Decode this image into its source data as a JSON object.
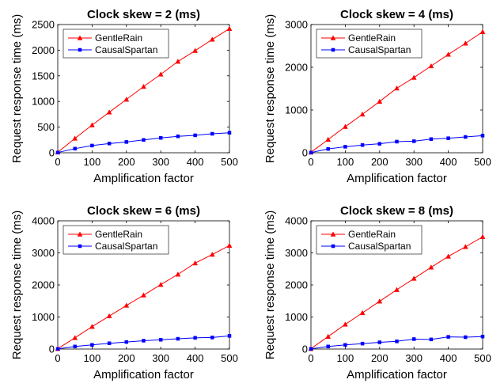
{
  "chart_data": [
    {
      "type": "line",
      "title": "Clock skew = 2 (ms)",
      "xlabel": "Amplification factor",
      "ylabel": "Request response time (ms)",
      "xlim": [
        0,
        500
      ],
      "ylim": [
        0,
        2500
      ],
      "xticks": [
        0,
        100,
        200,
        300,
        400,
        500
      ],
      "yticks": [
        0,
        500,
        1000,
        1500,
        2000,
        2500
      ],
      "legend": "top-left",
      "grid": false,
      "x": [
        0,
        50,
        100,
        150,
        200,
        250,
        300,
        350,
        400,
        450,
        500
      ],
      "series": [
        {
          "name": "GentleRain",
          "color": "#ff0000",
          "marker": "triangle",
          "values": [
            10,
            280,
            540,
            790,
            1040,
            1290,
            1530,
            1780,
            1990,
            2210,
            2420
          ]
        },
        {
          "name": "CausalSpartan",
          "color": "#0000ff",
          "marker": "square",
          "values": [
            5,
            80,
            140,
            180,
            210,
            250,
            290,
            320,
            340,
            370,
            390
          ]
        }
      ]
    },
    {
      "type": "line",
      "title": "Clock skew = 4 (ms)",
      "xlabel": "Amplification factor",
      "ylabel": "Request response time (ms)",
      "xlim": [
        0,
        500
      ],
      "ylim": [
        0,
        3000
      ],
      "xticks": [
        0,
        100,
        200,
        300,
        400,
        500
      ],
      "yticks": [
        0,
        1000,
        2000,
        3000
      ],
      "legend": "top-left",
      "grid": false,
      "x": [
        0,
        50,
        100,
        150,
        200,
        250,
        300,
        350,
        400,
        450,
        500
      ],
      "series": [
        {
          "name": "GentleRain",
          "color": "#ff0000",
          "marker": "triangle",
          "values": [
            10,
            310,
            610,
            900,
            1200,
            1510,
            1760,
            2030,
            2300,
            2560,
            2830
          ]
        },
        {
          "name": "CausalSpartan",
          "color": "#0000ff",
          "marker": "square",
          "values": [
            5,
            90,
            140,
            180,
            210,
            260,
            270,
            320,
            340,
            370,
            400
          ]
        }
      ]
    },
    {
      "type": "line",
      "title": "Clock skew = 6 (ms)",
      "xlabel": "Amplification factor",
      "ylabel": "Request response time (ms)",
      "xlim": [
        0,
        500
      ],
      "ylim": [
        0,
        4000
      ],
      "xticks": [
        0,
        100,
        200,
        300,
        400,
        500
      ],
      "yticks": [
        0,
        1000,
        2000,
        3000,
        4000
      ],
      "legend": "top-left",
      "grid": false,
      "x": [
        0,
        50,
        100,
        150,
        200,
        250,
        300,
        350,
        400,
        450,
        500
      ],
      "series": [
        {
          "name": "GentleRain",
          "color": "#ff0000",
          "marker": "triangle",
          "values": [
            10,
            350,
            700,
            1030,
            1360,
            1680,
            2010,
            2330,
            2680,
            2950,
            3230
          ]
        },
        {
          "name": "CausalSpartan",
          "color": "#0000ff",
          "marker": "square",
          "values": [
            5,
            80,
            130,
            180,
            220,
            260,
            290,
            320,
            350,
            360,
            410
          ]
        }
      ]
    },
    {
      "type": "line",
      "title": "Clock skew = 8 (ms)",
      "xlabel": "Amplification factor",
      "ylabel": "Request response time (ms)",
      "xlim": [
        0,
        500
      ],
      "ylim": [
        0,
        4000
      ],
      "xticks": [
        0,
        100,
        200,
        300,
        400,
        500
      ],
      "yticks": [
        0,
        1000,
        2000,
        3000,
        4000
      ],
      "legend": "top-left",
      "grid": false,
      "x": [
        0,
        50,
        100,
        150,
        200,
        250,
        300,
        350,
        400,
        450,
        500
      ],
      "series": [
        {
          "name": "GentleRain",
          "color": "#ff0000",
          "marker": "triangle",
          "values": [
            10,
            390,
            770,
            1130,
            1490,
            1850,
            2200,
            2550,
            2890,
            3190,
            3500
          ]
        },
        {
          "name": "CausalSpartan",
          "color": "#0000ff",
          "marker": "square",
          "values": [
            5,
            80,
            130,
            170,
            210,
            240,
            310,
            300,
            380,
            370,
            390
          ]
        }
      ]
    }
  ]
}
